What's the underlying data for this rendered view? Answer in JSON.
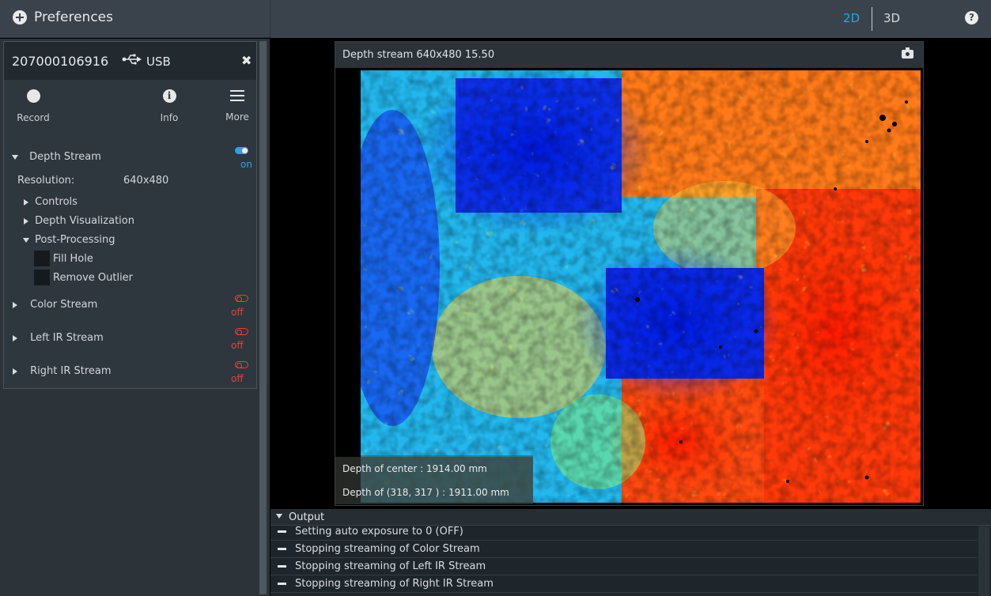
{
  "header": {
    "preferences_label": "Preferences",
    "view_2d": "2D",
    "view_3d": "3D",
    "help_icon": "question-circle-icon"
  },
  "device": {
    "serial": "207000106916",
    "connection": "USB",
    "toolbar": {
      "record_label": "Record",
      "info_label": "Info",
      "more_label": "More"
    },
    "depth_stream": {
      "label": "Depth Stream",
      "state": "on",
      "resolution_label": "Resolution:",
      "resolution_value": "640x480",
      "sections": [
        "Controls",
        "Depth Visualization",
        "Post-Processing"
      ],
      "post_processing": [
        "Fill Hole",
        "Remove Outlier"
      ]
    },
    "color_stream": {
      "label": "Color Stream",
      "state": "off"
    },
    "left_ir_stream": {
      "label": "Left IR Stream",
      "state": "off"
    },
    "right_ir_stream": {
      "label": "Right IR Stream",
      "state": "off"
    }
  },
  "viewer": {
    "title": "Depth stream  640x480  15.50",
    "center_depth": "Depth of center : 1914.00   mm",
    "point_depth": "Depth of (318, 317 ) : 1911.00   mm"
  },
  "output": {
    "title": "Output",
    "lines": [
      "Setting auto exposure to 0 (OFF)",
      "Stopping streaming of Color Stream",
      "Stopping streaming of Left IR Stream",
      "Stopping streaming of Right IR Stream"
    ]
  },
  "colors": {
    "accent": "#2aa3e6",
    "off": "#e2433b",
    "panel": "#2e373d",
    "header": "#3a434b"
  }
}
